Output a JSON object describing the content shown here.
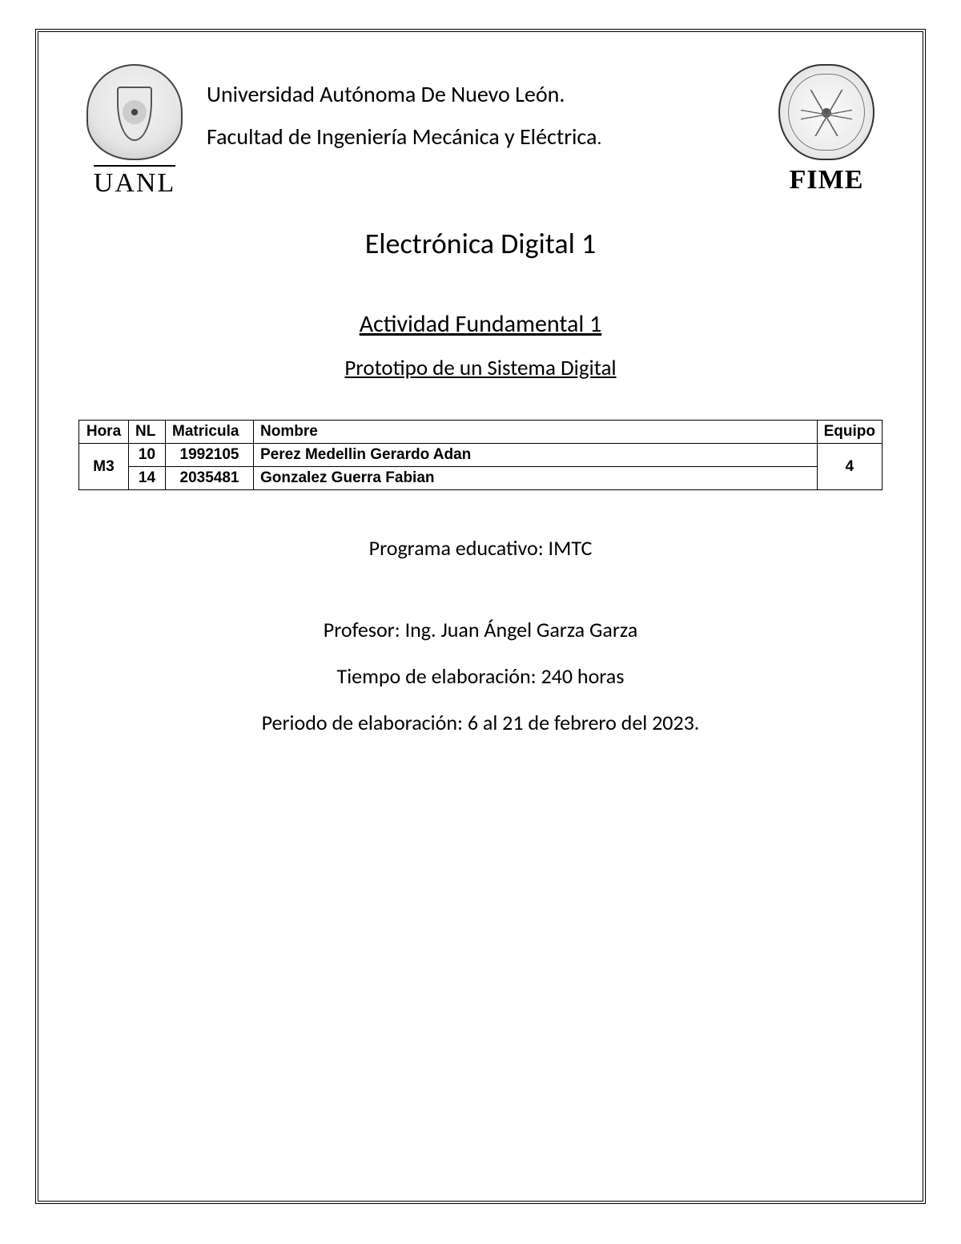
{
  "header": {
    "university": "Universidad Autónoma De Nuevo León.",
    "faculty_prefix": "Facultad de Ingeniería Mecánica y Eléctrica",
    "faculty_period": ".",
    "left_logo_caption": "UANL",
    "right_logo_caption": "FIME"
  },
  "course_title": "Electrónica Digital 1",
  "activity": {
    "title": "Actividad Fundamental 1",
    "subtitle": "Prototipo de un Sistema Digital"
  },
  "table": {
    "columns": {
      "hora": "Hora",
      "nl": "NL",
      "matricula": "Matricula",
      "nombre": "Nombre",
      "equipo": "Equipo"
    },
    "hora": "M3",
    "equipo": "4",
    "rows": [
      {
        "nl": "10",
        "matricula": "1992105",
        "nombre": "Perez Medellin Gerardo Adan"
      },
      {
        "nl": "14",
        "matricula": "2035481",
        "nombre": "Gonzalez Guerra Fabian"
      }
    ]
  },
  "info": {
    "program": "Programa educativo: IMTC",
    "professor": "Profesor: Ing. Juan Ángel Garza Garza",
    "time": "Tiempo de elaboración: 240 horas",
    "period": "Periodo de elaboración: 6 al 21 de febrero del 2023."
  },
  "style": {
    "page_bg": "#ffffff",
    "text_color": "#000000",
    "border_color": "#000000",
    "course_title_fontsize": 36,
    "activity_title_fontsize": 30,
    "activity_subtitle_fontsize": 27,
    "header_line_fontsize": 28,
    "info_fontsize": 26,
    "table_fontsize": 19,
    "logo_caption_fontsize": 34
  }
}
